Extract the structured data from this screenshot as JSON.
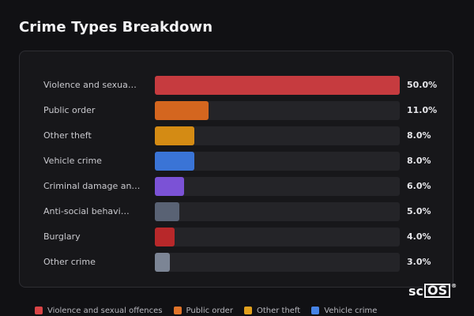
{
  "title": "Crime Types Breakdown",
  "brand": {
    "prefix": "sc",
    "boxed": "OS",
    "mark": "®"
  },
  "chart_data": {
    "type": "bar",
    "orientation": "horizontal",
    "title": "Crime Types Breakdown",
    "xlim": [
      0,
      50
    ],
    "categories": [
      "Violence and sexua…",
      "Public order",
      "Other theft",
      "Vehicle crime",
      "Criminal damage an…",
      "Anti-social behavi…",
      "Burglary",
      "Other crime"
    ],
    "values": [
      50.0,
      11.0,
      8.0,
      8.0,
      6.0,
      5.0,
      4.0,
      3.0
    ],
    "value_labels": [
      "50.0%",
      "11.0%",
      "8.0%",
      "8.0%",
      "6.0%",
      "5.0%",
      "4.0%",
      "3.0%"
    ],
    "colors": [
      "#c63b3f",
      "#d4661f",
      "#d48b14",
      "#3a74d6",
      "#7b52d6",
      "#596274",
      "#b8282a",
      "#7c8595"
    ],
    "legend": [
      {
        "label": "Violence and sexual offences",
        "color": "#d94446"
      },
      {
        "label": "Public order",
        "color": "#e0742a"
      },
      {
        "label": "Other theft",
        "color": "#e1a01e"
      },
      {
        "label": "Vehicle crime",
        "color": "#4683e6"
      }
    ],
    "legend_position": "bottom",
    "grid": false
  }
}
